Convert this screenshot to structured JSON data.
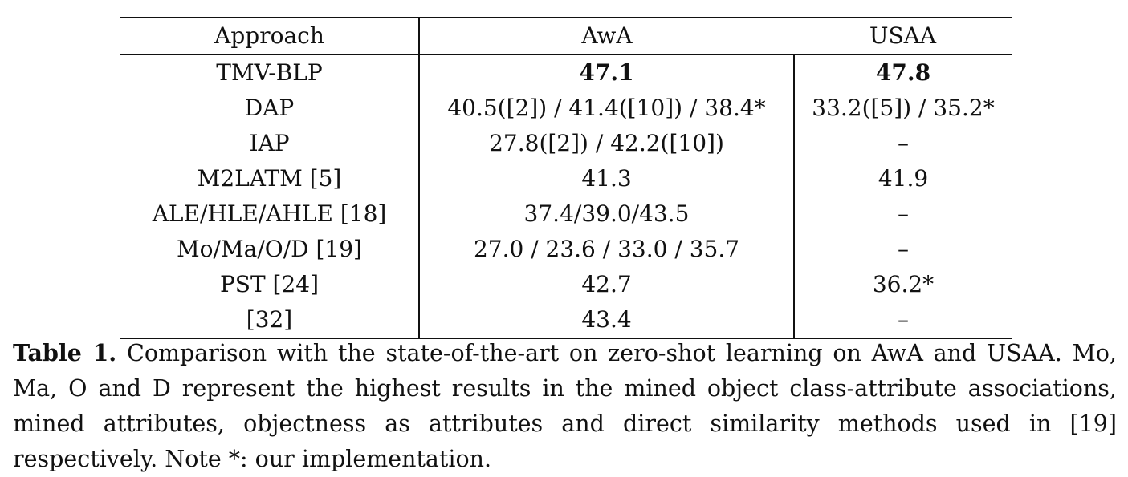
{
  "table": {
    "headers": [
      "Approach",
      "AwA",
      "USAA"
    ],
    "rows": [
      {
        "approach": "TMV-BLP",
        "awa": "47.1",
        "usaa": "47.8",
        "bold": true
      },
      {
        "approach": "DAP",
        "awa": "40.5([2]) / 41.4([10]) / 38.4*",
        "usaa": "33.2([5]) / 35.2*",
        "bold": false
      },
      {
        "approach": "IAP",
        "awa": "27.8([2]) / 42.2([10])",
        "usaa": "–",
        "bold": false
      },
      {
        "approach": "M2LATM [5]",
        "awa": "41.3",
        "usaa": "41.9",
        "bold": false
      },
      {
        "approach": "ALE/HLE/AHLE [18]",
        "awa": "37.4/39.0/43.5",
        "usaa": "–",
        "bold": false
      },
      {
        "approach": "Mo/Ma/O/D [19]",
        "awa": "27.0 / 23.6 / 33.0 / 35.7",
        "usaa": "–",
        "bold": false
      },
      {
        "approach": "PST [24]",
        "awa": "42.7",
        "usaa": "36.2*",
        "bold": false
      },
      {
        "approach": "[32]",
        "awa": "43.4",
        "usaa": "–",
        "bold": false
      }
    ]
  },
  "caption": {
    "label": "Table 1.",
    "text": "Comparison with the state-of-the-art on zero-shot learning on AwA and USAA. Mo, Ma, O and D represent the highest results in the mined object class-attribute associations, mined attributes, objectness as attributes and direct similarity methods used in [19] respectively. Note *: our implementation."
  }
}
